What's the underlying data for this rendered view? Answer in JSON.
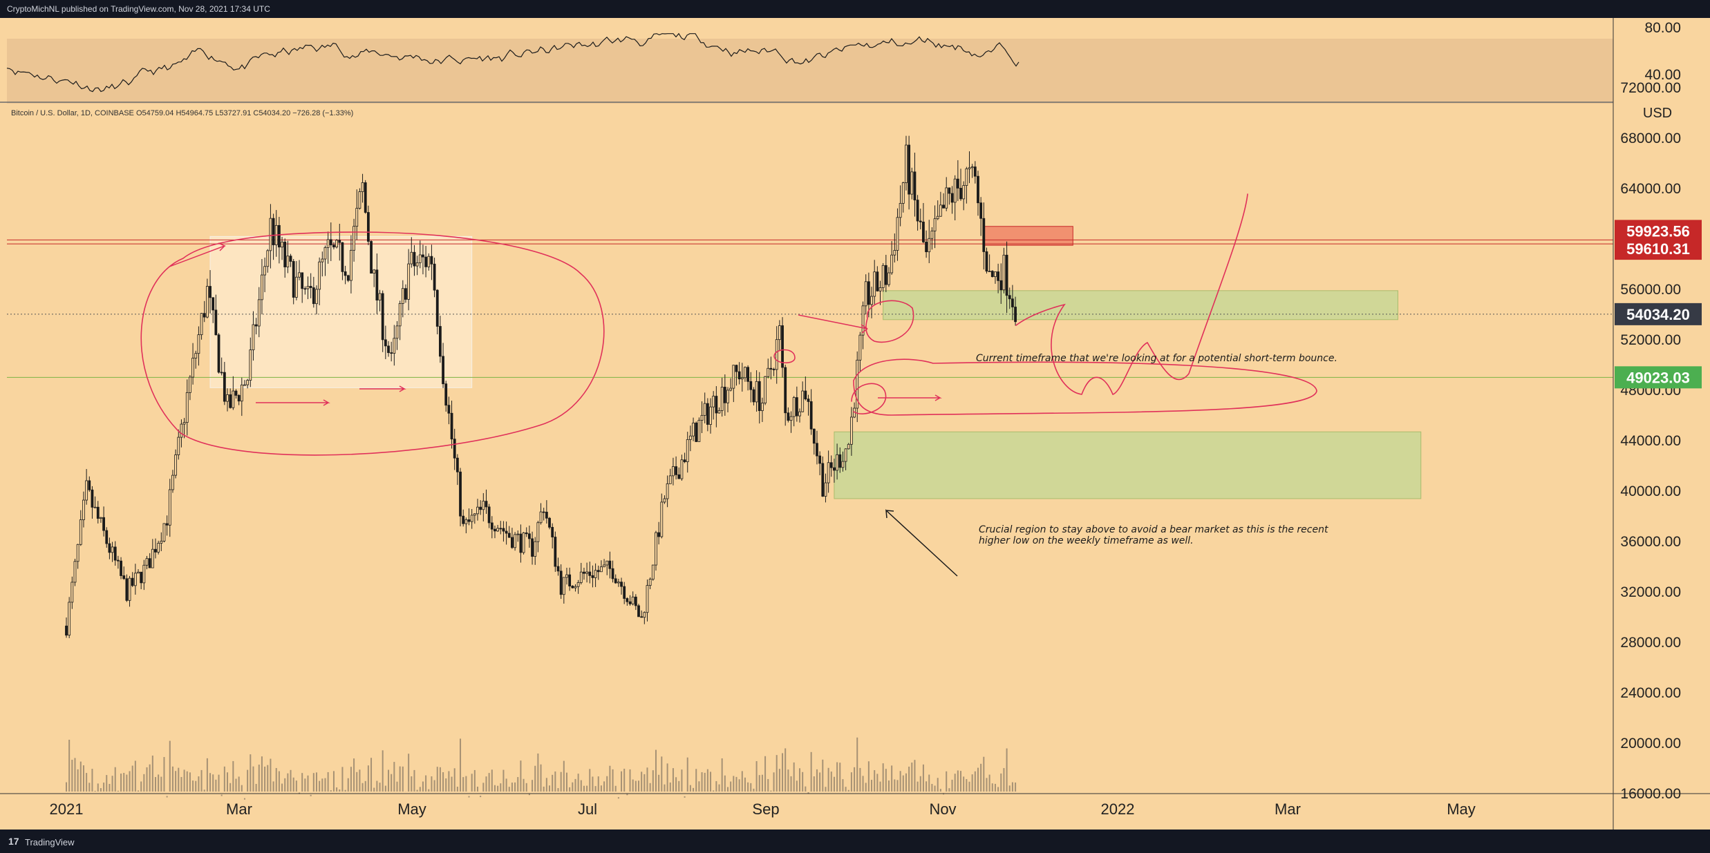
{
  "header": {
    "published_text": "CryptoMichNL published on TradingView.com, Nov 28, 2021 17:34 UTC"
  },
  "footer": {
    "logo_glyph": "17",
    "brand": "TradingView"
  },
  "colors": {
    "background": "#f9d59f",
    "rsi_band": "#ebc594",
    "axis_bg": "#f9d59f",
    "resistance": "#c62828",
    "support_label": "#4caf50",
    "current_price_label": "#363a45",
    "annotation": "#e0305a",
    "green_zone": "#c9d795",
    "red_zone": "#ef8a6a",
    "candle": "#1b1b1b",
    "volume": "#8a7a66"
  },
  "chart_data": {
    "type": "candlestick",
    "symbol_line": "Bitcoin / U.S. Dollar, 1D, COINBASE",
    "ohlc": {
      "open": "O54759.04",
      "high": "H54964.75",
      "low": "L53727.91",
      "close": "C54034.20",
      "change": "−726.28 (−1.33%)"
    },
    "currency_label": "USD",
    "y_ticks": [
      "72000.00",
      "68000.00",
      "64000.00",
      "56000.00",
      "52000.00",
      "48000.00",
      "44000.00",
      "40000.00",
      "36000.00",
      "32000.00",
      "28000.00",
      "24000.00",
      "20000.00",
      "16000.00"
    ],
    "rsi_ticks": [
      "80.00",
      "40.00"
    ],
    "x_ticks": [
      "2021",
      "Mar",
      "May",
      "Jul",
      "Sep",
      "Nov",
      "2022",
      "Mar",
      "May"
    ],
    "ylim": [
      12000,
      76000
    ],
    "price_labels": [
      {
        "value": "59923.56",
        "kind": "resistance"
      },
      {
        "value": "59610.31",
        "kind": "resistance"
      },
      {
        "value": "54034.20",
        "kind": "current"
      },
      {
        "value": "49023.03",
        "kind": "support"
      }
    ],
    "closes": [
      {
        "date": "2021-01-01",
        "close": 29300
      },
      {
        "date": "2021-01-08",
        "close": 40000
      },
      {
        "date": "2021-01-15",
        "close": 36000
      },
      {
        "date": "2021-01-22",
        "close": 32000
      },
      {
        "date": "2021-01-29",
        "close": 34000
      },
      {
        "date": "2021-02-05",
        "close": 38000
      },
      {
        "date": "2021-02-12",
        "close": 47500
      },
      {
        "date": "2021-02-19",
        "close": 55800
      },
      {
        "date": "2021-02-26",
        "close": 46500
      },
      {
        "date": "2021-03-05",
        "close": 49000
      },
      {
        "date": "2021-03-13",
        "close": 61000
      },
      {
        "date": "2021-03-19",
        "close": 57500
      },
      {
        "date": "2021-03-26",
        "close": 55000
      },
      {
        "date": "2021-04-02",
        "close": 59000
      },
      {
        "date": "2021-04-09",
        "close": 58000
      },
      {
        "date": "2021-04-14",
        "close": 64000
      },
      {
        "date": "2021-04-18",
        "close": 56500
      },
      {
        "date": "2021-04-24",
        "close": 50000
      },
      {
        "date": "2021-04-30",
        "close": 57800
      },
      {
        "date": "2021-05-08",
        "close": 58500
      },
      {
        "date": "2021-05-12",
        "close": 49500
      },
      {
        "date": "2021-05-19",
        "close": 37000
      },
      {
        "date": "2021-05-26",
        "close": 38500
      },
      {
        "date": "2021-06-04",
        "close": 36500
      },
      {
        "date": "2021-06-12",
        "close": 35500
      },
      {
        "date": "2021-06-16",
        "close": 39000
      },
      {
        "date": "2021-06-22",
        "close": 32500
      },
      {
        "date": "2021-07-01",
        "close": 33500
      },
      {
        "date": "2021-07-10",
        "close": 33800
      },
      {
        "date": "2021-07-20",
        "close": 29800
      },
      {
        "date": "2021-07-28",
        "close": 39500
      },
      {
        "date": "2021-08-07",
        "close": 44500
      },
      {
        "date": "2021-08-14",
        "close": 47000
      },
      {
        "date": "2021-08-23",
        "close": 49500
      },
      {
        "date": "2021-08-31",
        "close": 47100
      },
      {
        "date": "2021-09-06",
        "close": 52500
      },
      {
        "date": "2021-09-08",
        "close": 46000
      },
      {
        "date": "2021-09-15",
        "close": 48000
      },
      {
        "date": "2021-09-21",
        "close": 40600
      },
      {
        "date": "2021-09-30",
        "close": 43800
      },
      {
        "date": "2021-10-06",
        "close": 55300
      },
      {
        "date": "2021-10-14",
        "close": 57300
      },
      {
        "date": "2021-10-20",
        "close": 65900
      },
      {
        "date": "2021-10-27",
        "close": 58500
      },
      {
        "date": "2021-11-03",
        "close": 62900
      },
      {
        "date": "2021-11-10",
        "close": 64900
      },
      {
        "date": "2021-11-13",
        "close": 64300
      },
      {
        "date": "2021-11-18",
        "close": 56900
      },
      {
        "date": "2021-11-23",
        "close": 57500
      },
      {
        "date": "2021-11-28",
        "close": 54034
      }
    ],
    "zones": [
      {
        "kind": "range-box",
        "from": "2021-02-20",
        "to": "2021-05-22",
        "low": 48200,
        "high": 60200
      },
      {
        "kind": "red",
        "from": "2021-11-16",
        "to": "2021-12-17",
        "low": 59500,
        "high": 61000
      },
      {
        "kind": "green",
        "from": "2021-10-12",
        "to": "2022-04-09",
        "low": 53600,
        "high": 55900
      },
      {
        "kind": "green",
        "from": "2021-09-25",
        "to": "2022-04-17",
        "low": 39400,
        "high": 44700
      }
    ],
    "annotations": [
      "Current timeframe that we're looking at for a potential short-term bounce.",
      "Crucial region to stay above to avoid a bear market as this is the recent",
      "higher low on the weekly timeframe as well."
    ]
  }
}
